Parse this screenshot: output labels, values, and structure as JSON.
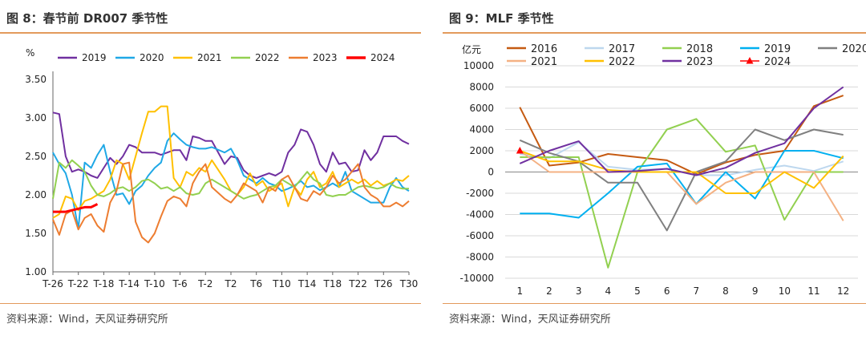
{
  "left": {
    "title": "图 8：春节前 DR007 季节性",
    "source": "资料来源：Wind，天风证券研究所"
  },
  "right": {
    "title": "图 9：MLF 季节性",
    "source": "资料来源：Wind，天风证券研究所"
  },
  "chart_data": [
    {
      "type": "line",
      "title": "",
      "ylabel": "%",
      "ylim": [
        1.0,
        3.5
      ],
      "yticks": [
        "1.00",
        "1.50",
        "2.00",
        "2.50",
        "3.00",
        "3.50"
      ],
      "xticks": [
        "T-26",
        "T-22",
        "T-18",
        "T-14",
        "T-10",
        "T-6",
        "T-2",
        "T2",
        "T6",
        "T10",
        "T14",
        "T18",
        "T22",
        "T26",
        "T30"
      ],
      "x_range": [
        -26,
        30
      ],
      "legend_position": "top",
      "grid": false,
      "series": [
        {
          "name": "2019",
          "color": "#7030A0",
          "width": 2,
          "x": [
            -26,
            -25,
            -24,
            -23,
            -22,
            -21,
            -20,
            -19,
            -18,
            -17,
            -16,
            -15,
            -14,
            -13,
            -12,
            -11,
            -10,
            -9,
            -8,
            -7,
            -6,
            -5,
            -4,
            -3,
            -2,
            -1,
            1,
            2,
            3,
            4,
            5,
            6,
            7,
            8,
            9,
            10,
            11,
            12,
            13,
            14,
            15,
            16,
            17,
            18,
            19,
            20,
            21,
            22,
            23,
            24,
            25,
            26,
            27,
            28,
            29,
            30
          ],
          "values": [
            3.07,
            3.05,
            2.5,
            2.3,
            2.33,
            2.3,
            2.25,
            2.22,
            2.35,
            2.48,
            2.4,
            2.5,
            2.65,
            2.62,
            2.55,
            2.55,
            2.55,
            2.52,
            2.55,
            2.58,
            2.58,
            2.45,
            2.76,
            2.74,
            2.7,
            2.7,
            2.4,
            2.5,
            2.48,
            2.32,
            2.25,
            2.22,
            2.25,
            2.28,
            2.25,
            2.3,
            2.55,
            2.65,
            2.85,
            2.82,
            2.65,
            2.4,
            2.3,
            2.55,
            2.4,
            2.42,
            2.3,
            2.32,
            2.58,
            2.45,
            2.55,
            2.76,
            2.76,
            2.76,
            2.7,
            2.66
          ]
        },
        {
          "name": "2020",
          "color": "#1FA8E6",
          "width": 2,
          "x": [
            -26,
            -25,
            -24,
            -23,
            -22,
            -21,
            -20,
            -19,
            -18,
            -17,
            -16,
            -15,
            -14,
            -13,
            -12,
            -11,
            -10,
            -9,
            -8,
            -7,
            -6,
            -5,
            -4,
            -3,
            -2,
            -1,
            1,
            2,
            3,
            4,
            5,
            6,
            7,
            8,
            9,
            10,
            11,
            12,
            13,
            14,
            15,
            16,
            17,
            18,
            19,
            20,
            21,
            22,
            23,
            24,
            25,
            26,
            27,
            28,
            29,
            30
          ],
          "values": [
            2.55,
            2.4,
            2.28,
            2.0,
            1.56,
            2.42,
            2.35,
            2.52,
            2.65,
            2.3,
            2.0,
            2.02,
            1.88,
            2.05,
            2.12,
            2.25,
            2.35,
            2.42,
            2.7,
            2.8,
            2.72,
            2.65,
            2.62,
            2.6,
            2.6,
            2.62,
            2.55,
            2.6,
            2.45,
            2.25,
            2.2,
            2.15,
            2.22,
            2.15,
            2.12,
            2.05,
            2.08,
            2.12,
            2.18,
            2.1,
            2.12,
            2.06,
            2.1,
            2.15,
            2.1,
            2.3,
            2.05,
            2.0,
            1.95,
            1.9,
            1.9,
            1.9,
            2.1,
            2.22,
            2.1,
            2.05
          ]
        },
        {
          "name": "2021",
          "color": "#FFC000",
          "width": 2,
          "x": [
            -26,
            -25,
            -24,
            -23,
            -22,
            -21,
            -20,
            -19,
            -18,
            -17,
            -16,
            -15,
            -14,
            -13,
            -12,
            -11,
            -10,
            -9,
            -8,
            -7,
            -6,
            -5,
            -4,
            -3,
            -2,
            -1,
            1,
            2,
            3,
            4,
            5,
            6,
            7,
            8,
            9,
            10,
            11,
            12,
            13,
            14,
            15,
            16,
            17,
            18,
            19,
            20,
            21,
            22,
            23,
            24,
            25,
            26,
            27,
            28,
            29,
            30
          ],
          "values": [
            1.7,
            1.75,
            1.98,
            1.95,
            1.8,
            1.92,
            1.95,
            2.0,
            2.05,
            2.2,
            2.45,
            2.4,
            2.2,
            2.5,
            2.8,
            3.08,
            3.08,
            3.15,
            3.15,
            2.22,
            2.1,
            2.3,
            2.25,
            2.35,
            2.3,
            2.45,
            2.2,
            2.05,
            2.0,
            2.1,
            2.28,
            2.12,
            2.18,
            2.05,
            2.1,
            2.15,
            1.85,
            2.1,
            2.0,
            2.2,
            2.3,
            2.1,
            2.15,
            2.3,
            2.1,
            2.15,
            2.2,
            2.15,
            2.2,
            2.12,
            2.18,
            2.12,
            2.15,
            2.2,
            2.18,
            2.25
          ]
        },
        {
          "name": "2022",
          "color": "#92D050",
          "width": 2,
          "x": [
            -26,
            -25,
            -24,
            -23,
            -22,
            -21,
            -20,
            -19,
            -18,
            -17,
            -16,
            -15,
            -14,
            -13,
            -12,
            -11,
            -10,
            -9,
            -8,
            -7,
            -6,
            -5,
            -4,
            -3,
            -2,
            -1,
            1,
            2,
            3,
            4,
            5,
            6,
            7,
            8,
            9,
            10,
            11,
            12,
            13,
            14,
            15,
            16,
            17,
            18,
            19,
            20,
            21,
            22,
            23,
            24,
            25,
            26,
            27,
            28,
            29,
            30
          ],
          "values": [
            1.95,
            2.42,
            2.35,
            2.45,
            2.38,
            2.3,
            2.12,
            2.0,
            1.98,
            2.02,
            2.08,
            2.1,
            2.05,
            2.1,
            2.18,
            2.2,
            2.15,
            2.08,
            2.1,
            2.05,
            2.1,
            2.02,
            2.0,
            2.02,
            2.15,
            2.2,
            2.1,
            2.05,
            2.0,
            1.95,
            1.98,
            2.0,
            2.05,
            2.1,
            2.12,
            2.2,
            2.15,
            2.1,
            2.2,
            2.3,
            2.2,
            2.15,
            2.0,
            1.98,
            2.0,
            2.0,
            2.05,
            2.1,
            2.12,
            2.1,
            2.08,
            2.1,
            2.15,
            2.1,
            2.08,
            2.08
          ]
        },
        {
          "name": "2023",
          "color": "#ED7D31",
          "width": 2,
          "x": [
            -26,
            -25,
            -24,
            -23,
            -22,
            -21,
            -20,
            -19,
            -18,
            -17,
            -16,
            -15,
            -14,
            -13,
            -12,
            -11,
            -10,
            -9,
            -8,
            -7,
            -6,
            -5,
            -4,
            -3,
            -2,
            -1,
            1,
            2,
            3,
            4,
            5,
            6,
            7,
            8,
            9,
            10,
            11,
            12,
            13,
            14,
            15,
            16,
            17,
            18,
            19,
            20,
            21,
            22,
            23,
            24,
            25,
            26,
            27,
            28,
            29,
            30
          ],
          "values": [
            1.68,
            1.48,
            1.75,
            1.8,
            1.55,
            1.7,
            1.75,
            1.6,
            1.52,
            1.9,
            2.05,
            2.4,
            2.42,
            1.65,
            1.45,
            1.38,
            1.5,
            1.72,
            1.92,
            1.98,
            1.95,
            1.85,
            2.15,
            2.3,
            2.4,
            2.1,
            1.95,
            1.9,
            2.0,
            2.15,
            2.1,
            2.05,
            1.9,
            2.1,
            2.05,
            2.2,
            2.25,
            2.1,
            1.95,
            1.92,
            2.05,
            2.0,
            2.1,
            2.25,
            2.15,
            2.2,
            2.3,
            2.4,
            2.1,
            2.0,
            1.95,
            1.85,
            1.85,
            1.9,
            1.85,
            1.92
          ]
        },
        {
          "name": "2024",
          "color": "#FF0000",
          "width": 3,
          "x": [
            -26,
            -25,
            -24,
            -23,
            -22,
            -21,
            -20,
            -19
          ],
          "values": [
            1.78,
            1.78,
            1.78,
            1.8,
            1.82,
            1.84,
            1.84,
            1.88
          ]
        }
      ]
    },
    {
      "type": "line",
      "title": "",
      "ylabel": "亿元",
      "ylim": [
        -10000,
        10000
      ],
      "yticks": [
        "-10000",
        "-8000",
        "-6000",
        "-4000",
        "-2000",
        "0",
        "2000",
        "4000",
        "6000",
        "8000",
        "10000"
      ],
      "xticks": [
        "1",
        "2",
        "3",
        "4",
        "5",
        "6",
        "7",
        "8",
        "9",
        "10",
        "11",
        "12"
      ],
      "x_range": [
        0.5,
        12.5
      ],
      "legend_position": "top",
      "grid": true,
      "series": [
        {
          "name": "2016",
          "color": "#C55A11",
          "width": 2,
          "x": [
            1,
            2,
            3,
            4,
            5,
            6,
            7,
            8,
            9,
            10,
            11,
            12
          ],
          "values": [
            6100,
            600,
            900,
            1700,
            1400,
            1100,
            -200,
            900,
            1600,
            2000,
            6200,
            7200
          ]
        },
        {
          "name": "2017",
          "color": "#BDD7EE",
          "width": 2,
          "x": [
            1,
            2,
            3,
            4,
            5,
            6,
            7,
            8,
            9,
            10,
            11,
            12
          ],
          "values": [
            1700,
            1300,
            2800,
            500,
            200,
            300,
            -300,
            -300,
            200,
            600,
            100,
            1000
          ]
        },
        {
          "name": "2018",
          "color": "#92D050",
          "width": 2,
          "x": [
            1,
            2,
            3,
            4,
            5,
            6,
            7,
            8,
            9,
            10,
            11,
            12
          ],
          "values": [
            1400,
            1400,
            1400,
            -9000,
            0,
            4000,
            5000,
            1900,
            2500,
            -4500,
            0,
            0
          ]
        },
        {
          "name": "2019",
          "color": "#00B0F0",
          "width": 2,
          "x": [
            1,
            2,
            3,
            4,
            5,
            6,
            7,
            8,
            9,
            10,
            11,
            12
          ],
          "values": [
            -3900,
            -3900,
            -4300,
            -2000,
            500,
            800,
            -3000,
            0,
            -2500,
            2000,
            2000,
            1300
          ]
        },
        {
          "name": "2020",
          "color": "#808080",
          "width": 2,
          "x": [
            1,
            2,
            3,
            4,
            5,
            6,
            7,
            8,
            9,
            10,
            11,
            12
          ],
          "values": [
            3000,
            1800,
            1000,
            -1000,
            -1000,
            -5500,
            0,
            1000,
            4000,
            3000,
            4000,
            3500
          ]
        },
        {
          "name": "2021",
          "color": "#F4B183",
          "width": 2,
          "x": [
            1,
            2,
            3,
            4,
            5,
            6,
            7,
            8,
            9,
            10,
            11,
            12
          ],
          "values": [
            2000,
            0,
            0,
            0,
            0,
            0,
            -3000,
            -1000,
            0,
            0,
            0,
            -4600
          ]
        },
        {
          "name": "2022",
          "color": "#FFC000",
          "width": 2,
          "x": [
            1,
            2,
            3,
            4,
            5,
            6,
            7,
            8,
            9,
            10,
            11,
            12
          ],
          "values": [
            2000,
            1000,
            1000,
            200,
            0,
            0,
            0,
            -2000,
            -2000,
            0,
            -1500,
            1500
          ]
        },
        {
          "name": "2023",
          "color": "#7030A0",
          "width": 2,
          "x": [
            1,
            2,
            3,
            4,
            5,
            6,
            7,
            8,
            9,
            10,
            11,
            12
          ],
          "values": [
            800,
            2000,
            2900,
            0,
            100,
            300,
            -300,
            400,
            1800,
            2700,
            6000,
            8000
          ]
        },
        {
          "name": "2024",
          "color": "#FF0000",
          "width": 2,
          "marker": "triangle",
          "x": [
            1
          ],
          "values": [
            2000
          ]
        }
      ]
    }
  ]
}
